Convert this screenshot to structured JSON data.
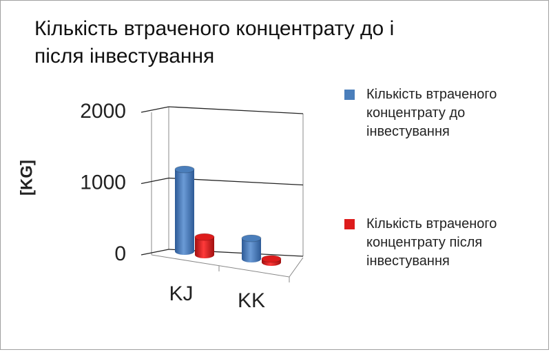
{
  "chart_data": {
    "type": "bar3d",
    "title": "Кількість втраченого концентрату до і після інвестування",
    "y_label": "[KG]",
    "categories": [
      "KJ",
      "KK"
    ],
    "series": [
      {
        "name": "Кількість втраченого концентрату до інвестування",
        "color": "#4a7ebb",
        "values": [
          1150,
          290
        ]
      },
      {
        "name": "Кількість втраченого концентрату після інвестування",
        "color": "#dd1c1c",
        "values": [
          250,
          50
        ]
      }
    ],
    "ylim": [
      0,
      2000
    ],
    "yticks": [
      0,
      1000,
      2000
    ],
    "grid": true,
    "legend": "right"
  }
}
